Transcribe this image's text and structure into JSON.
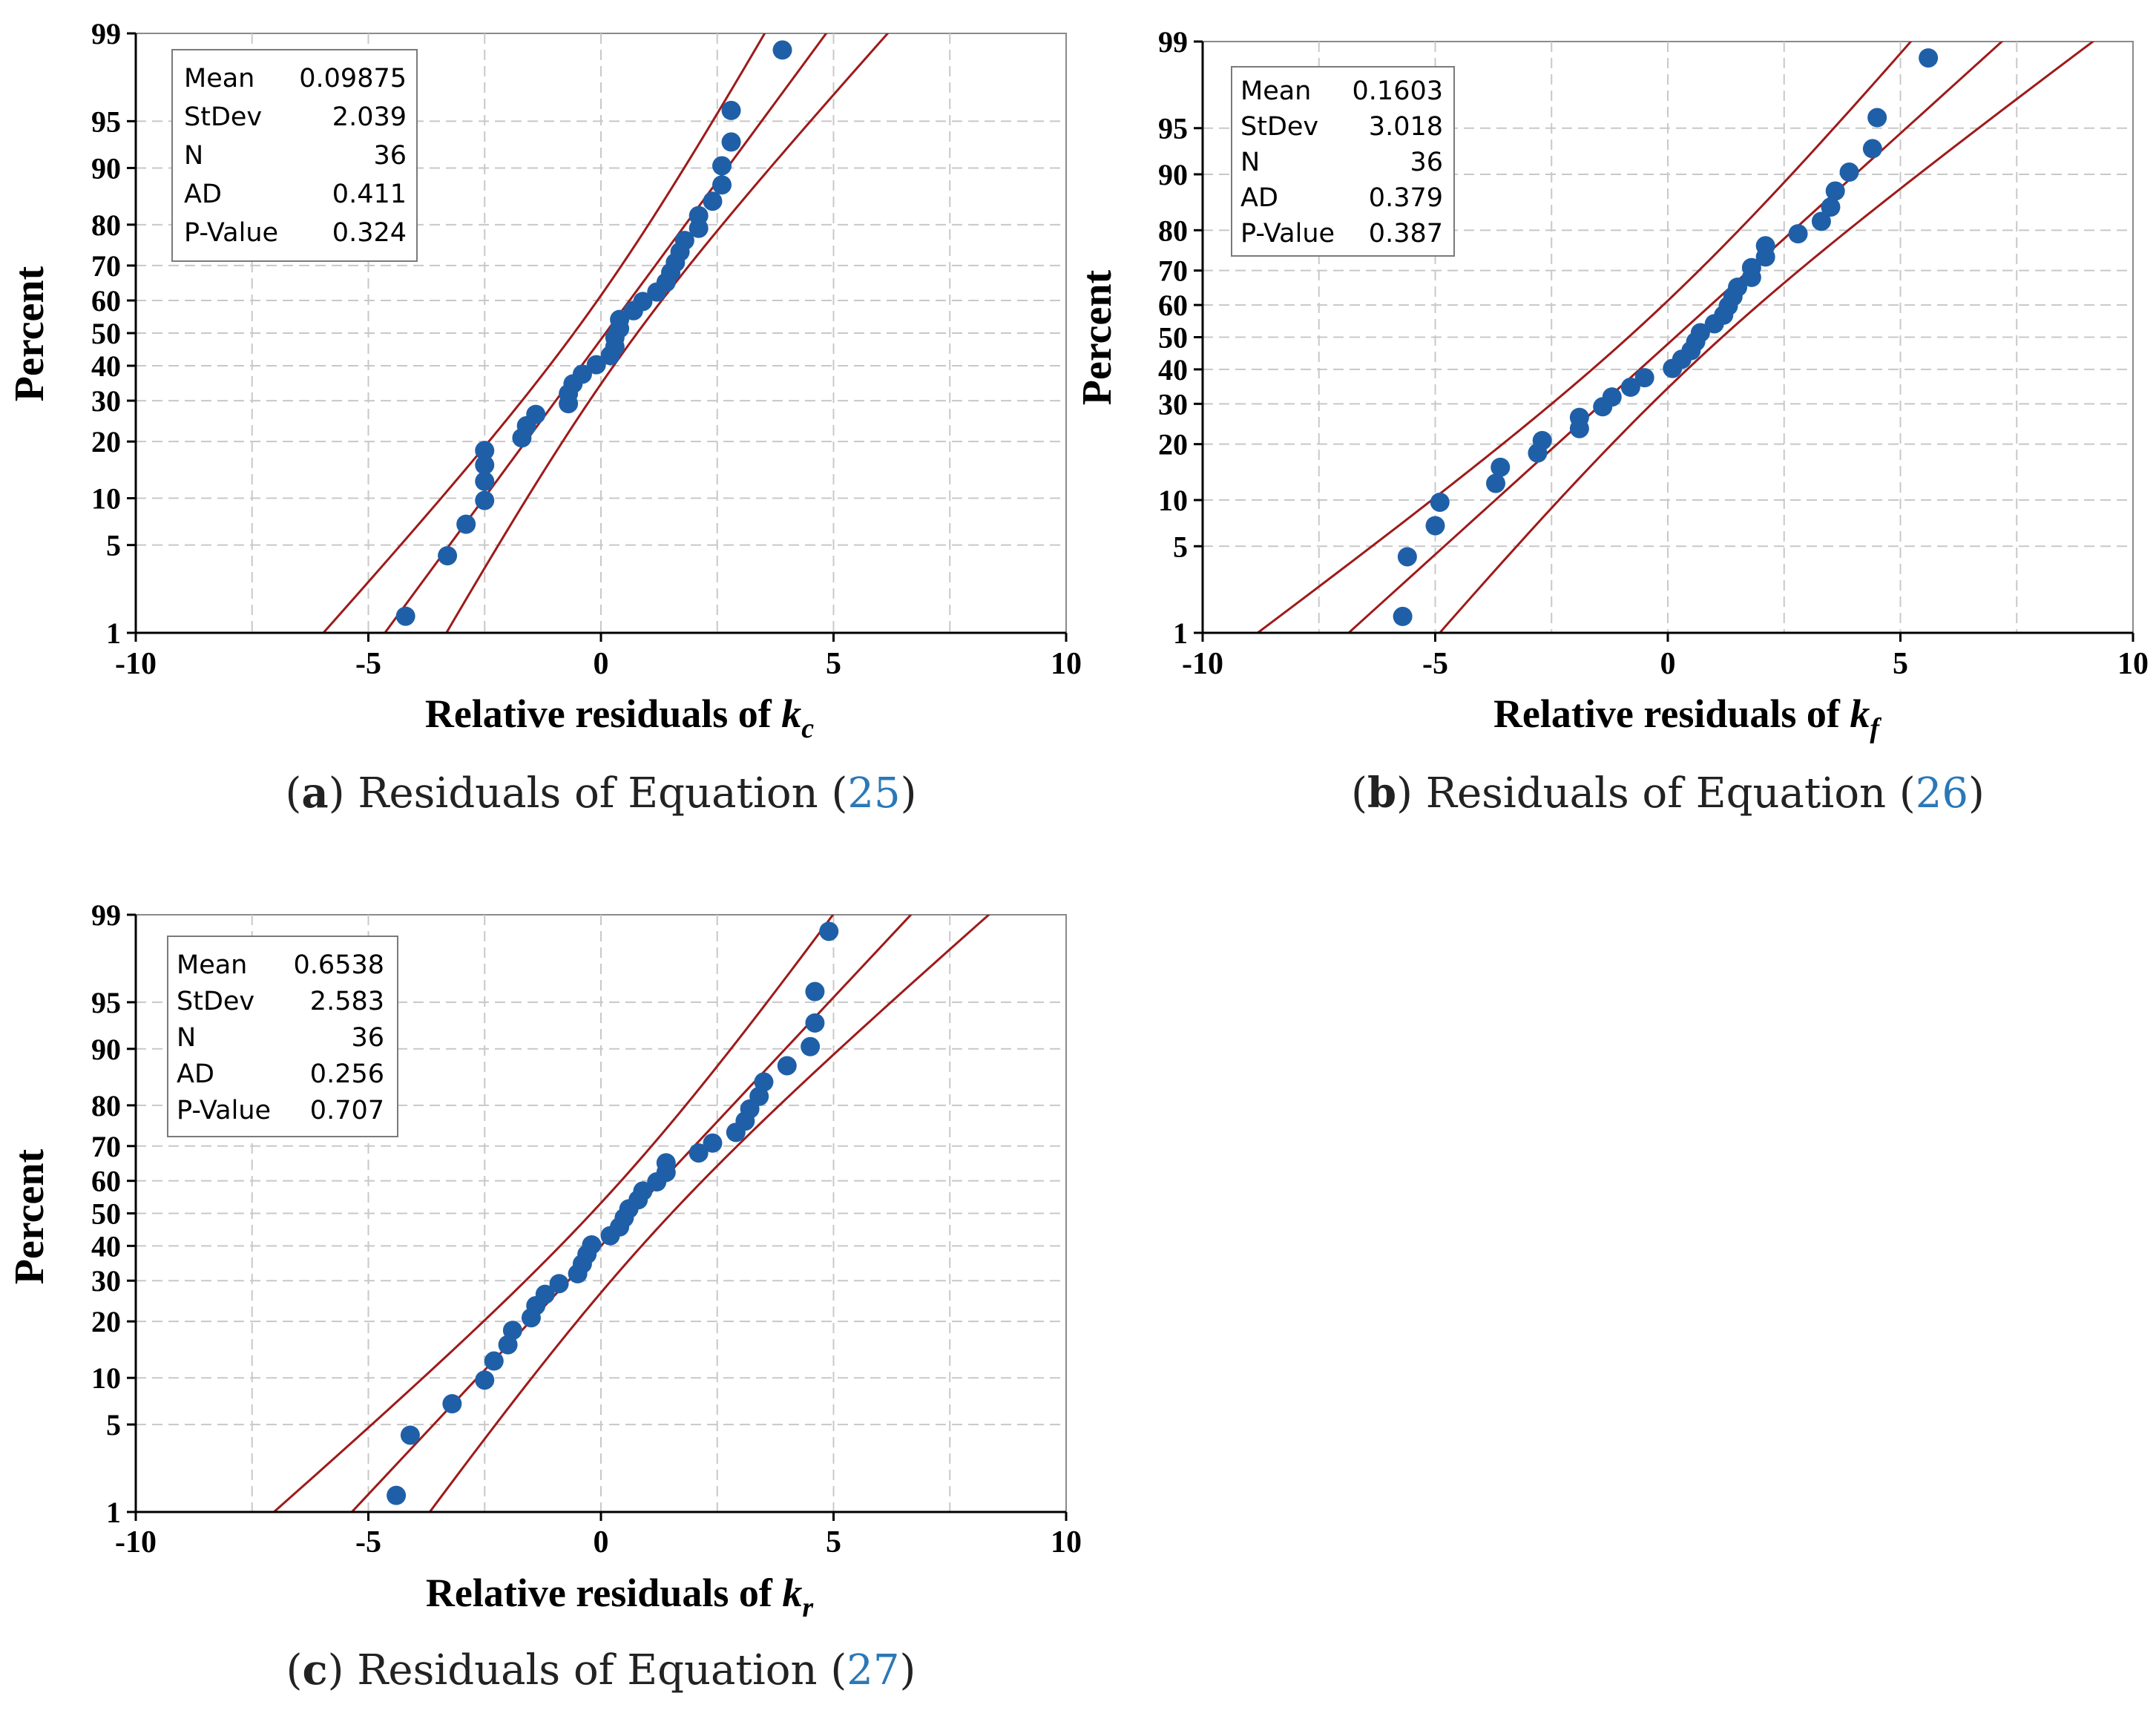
{
  "chart_data": [
    {
      "type": "scatter",
      "title": "",
      "ylabel": "Percent",
      "xlabel": "Relative residuals of ",
      "xlabel_symbol": "k",
      "xlabel_sub": "c",
      "caption": {
        "letter": "a",
        "text": "Residuals of Equation (",
        "ref": "25",
        "close": ")"
      },
      "xlim": [
        -10,
        10
      ],
      "xticks": [
        -10,
        -5,
        0,
        5,
        10
      ],
      "xtick_labels": [
        "-10",
        "-5",
        "0",
        "5",
        "10"
      ],
      "yticks": [
        1,
        5,
        10,
        20,
        30,
        40,
        50,
        60,
        70,
        80,
        90,
        95,
        99
      ],
      "ytick_labels": [
        "1",
        "5",
        "10",
        "20",
        "30",
        "40",
        "50",
        "60",
        "70",
        "80",
        "90",
        "95",
        "99"
      ],
      "grid": true,
      "stats": [
        {
          "label": "Mean",
          "value": "0.09875"
        },
        {
          "label": "StDev",
          "value": "2.039"
        },
        {
          "label": "N",
          "value": "36"
        },
        {
          "label": "AD",
          "value": "0.411"
        },
        {
          "label": "P-Value",
          "value": "0.324"
        }
      ],
      "fit": {
        "mean": 0.09875,
        "sd": 2.039,
        "n": 36
      },
      "colors": {
        "points": "#1f5fa8",
        "fit_line": "#9e1a1a",
        "grid": "#c8c8c8"
      },
      "points": [
        {
          "x": -4.2,
          "y": 1.4
        },
        {
          "x": -3.3,
          "y": 4.2
        },
        {
          "x": -2.9,
          "y": 6.9
        },
        {
          "x": -2.5,
          "y": 9.7
        },
        {
          "x": -2.5,
          "y": 12.5
        },
        {
          "x": -2.5,
          "y": 15.3
        },
        {
          "x": -2.5,
          "y": 18.1
        },
        {
          "x": -1.7,
          "y": 20.8
        },
        {
          "x": -1.6,
          "y": 23.6
        },
        {
          "x": -1.4,
          "y": 26.4
        },
        {
          "x": -0.7,
          "y": 29.2
        },
        {
          "x": -0.7,
          "y": 31.9
        },
        {
          "x": -0.6,
          "y": 34.7
        },
        {
          "x": -0.4,
          "y": 37.5
        },
        {
          "x": -0.1,
          "y": 40.3
        },
        {
          "x": 0.2,
          "y": 43.1
        },
        {
          "x": 0.3,
          "y": 45.8
        },
        {
          "x": 0.3,
          "y": 48.6
        },
        {
          "x": 0.4,
          "y": 51.4
        },
        {
          "x": 0.4,
          "y": 54.2
        },
        {
          "x": 0.7,
          "y": 56.9
        },
        {
          "x": 0.9,
          "y": 59.7
        },
        {
          "x": 1.2,
          "y": 62.5
        },
        {
          "x": 1.4,
          "y": 65.3
        },
        {
          "x": 1.5,
          "y": 68.1
        },
        {
          "x": 1.6,
          "y": 70.8
        },
        {
          "x": 1.7,
          "y": 73.6
        },
        {
          "x": 1.8,
          "y": 76.4
        },
        {
          "x": 2.1,
          "y": 79.2
        },
        {
          "x": 2.1,
          "y": 81.9
        },
        {
          "x": 2.4,
          "y": 84.7
        },
        {
          "x": 2.6,
          "y": 87.5
        },
        {
          "x": 2.6,
          "y": 90.3
        },
        {
          "x": 2.8,
          "y": 93.1
        },
        {
          "x": 2.8,
          "y": 95.8
        },
        {
          "x": 3.9,
          "y": 98.6
        }
      ]
    },
    {
      "type": "scatter",
      "title": "",
      "ylabel": "Percent",
      "xlabel": "Relative residuals of ",
      "xlabel_symbol": "k",
      "xlabel_sub": "f",
      "caption": {
        "letter": "b",
        "text": "Residuals of Equation (",
        "ref": "26",
        "close": ")"
      },
      "xlim": [
        -10,
        10
      ],
      "xticks": [
        -10,
        -5,
        0,
        5,
        10
      ],
      "xtick_labels": [
        "-10",
        "-5",
        "0",
        "5",
        "10"
      ],
      "yticks": [
        1,
        5,
        10,
        20,
        30,
        40,
        50,
        60,
        70,
        80,
        90,
        95,
        99
      ],
      "ytick_labels": [
        "1",
        "5",
        "10",
        "20",
        "30",
        "40",
        "50",
        "60",
        "70",
        "80",
        "90",
        "95",
        "99"
      ],
      "grid": true,
      "stats": [
        {
          "label": "Mean",
          "value": "0.1603"
        },
        {
          "label": "StDev",
          "value": "3.018"
        },
        {
          "label": "N",
          "value": "36"
        },
        {
          "label": "AD",
          "value": "0.379"
        },
        {
          "label": "P-Value",
          "value": "0.387"
        }
      ],
      "fit": {
        "mean": 0.1603,
        "sd": 3.018,
        "n": 36
      },
      "colors": {
        "points": "#1f5fa8",
        "fit_line": "#9e1a1a",
        "grid": "#c8c8c8"
      },
      "points": [
        {
          "x": -5.7,
          "y": 1.4
        },
        {
          "x": -5.6,
          "y": 4.2
        },
        {
          "x": -5.0,
          "y": 6.9
        },
        {
          "x": -4.9,
          "y": 9.7
        },
        {
          "x": -3.7,
          "y": 12.5
        },
        {
          "x": -3.6,
          "y": 15.3
        },
        {
          "x": -2.8,
          "y": 18.1
        },
        {
          "x": -2.7,
          "y": 20.8
        },
        {
          "x": -1.9,
          "y": 23.6
        },
        {
          "x": -1.9,
          "y": 26.4
        },
        {
          "x": -1.4,
          "y": 29.2
        },
        {
          "x": -1.2,
          "y": 31.9
        },
        {
          "x": -0.8,
          "y": 34.7
        },
        {
          "x": -0.5,
          "y": 37.5
        },
        {
          "x": 0.1,
          "y": 40.3
        },
        {
          "x": 0.3,
          "y": 43.1
        },
        {
          "x": 0.5,
          "y": 45.8
        },
        {
          "x": 0.6,
          "y": 48.6
        },
        {
          "x": 0.7,
          "y": 51.4
        },
        {
          "x": 1.0,
          "y": 54.2
        },
        {
          "x": 1.2,
          "y": 56.9
        },
        {
          "x": 1.3,
          "y": 59.7
        },
        {
          "x": 1.4,
          "y": 62.5
        },
        {
          "x": 1.5,
          "y": 65.3
        },
        {
          "x": 1.8,
          "y": 68.1
        },
        {
          "x": 1.8,
          "y": 70.8
        },
        {
          "x": 2.1,
          "y": 73.6
        },
        {
          "x": 2.1,
          "y": 76.4
        },
        {
          "x": 2.8,
          "y": 79.2
        },
        {
          "x": 3.3,
          "y": 81.9
        },
        {
          "x": 3.5,
          "y": 84.7
        },
        {
          "x": 3.6,
          "y": 87.5
        },
        {
          "x": 3.9,
          "y": 90.3
        },
        {
          "x": 4.4,
          "y": 93.1
        },
        {
          "x": 4.5,
          "y": 95.8
        },
        {
          "x": 5.6,
          "y": 98.6
        }
      ]
    },
    {
      "type": "scatter",
      "title": "",
      "ylabel": "Percent",
      "xlabel": "Relative residuals of ",
      "xlabel_symbol": "k",
      "xlabel_sub": "r",
      "caption": {
        "letter": "c",
        "text": "Residuals of Equation (",
        "ref": "27",
        "close": ")"
      },
      "xlim": [
        -10,
        10
      ],
      "xticks": [
        -10,
        -5,
        0,
        5,
        10
      ],
      "xtick_labels": [
        "-10",
        "-5",
        "0",
        "5",
        "10"
      ],
      "yticks": [
        1,
        5,
        10,
        20,
        30,
        40,
        50,
        60,
        70,
        80,
        90,
        95,
        99
      ],
      "ytick_labels": [
        "1",
        "5",
        "10",
        "20",
        "30",
        "40",
        "50",
        "60",
        "70",
        "80",
        "90",
        "95",
        "99"
      ],
      "grid": true,
      "stats": [
        {
          "label": "Mean",
          "value": "0.6538"
        },
        {
          "label": "StDev",
          "value": "2.583"
        },
        {
          "label": "N",
          "value": "36"
        },
        {
          "label": "AD",
          "value": "0.256"
        },
        {
          "label": "P-Value",
          "value": "0.707"
        }
      ],
      "fit": {
        "mean": 0.6538,
        "sd": 2.583,
        "n": 36
      },
      "colors": {
        "points": "#1f5fa8",
        "fit_line": "#9e1a1a",
        "grid": "#c8c8c8"
      },
      "points": [
        {
          "x": -4.4,
          "y": 1.4
        },
        {
          "x": -4.1,
          "y": 4.2
        },
        {
          "x": -3.2,
          "y": 6.9
        },
        {
          "x": -2.5,
          "y": 9.7
        },
        {
          "x": -2.3,
          "y": 12.5
        },
        {
          "x": -2.0,
          "y": 15.3
        },
        {
          "x": -1.9,
          "y": 18.1
        },
        {
          "x": -1.5,
          "y": 20.8
        },
        {
          "x": -1.4,
          "y": 23.6
        },
        {
          "x": -1.2,
          "y": 26.4
        },
        {
          "x": -0.9,
          "y": 29.2
        },
        {
          "x": -0.5,
          "y": 31.9
        },
        {
          "x": -0.4,
          "y": 34.7
        },
        {
          "x": -0.3,
          "y": 37.5
        },
        {
          "x": -0.2,
          "y": 40.3
        },
        {
          "x": 0.2,
          "y": 43.1
        },
        {
          "x": 0.4,
          "y": 45.8
        },
        {
          "x": 0.5,
          "y": 48.6
        },
        {
          "x": 0.6,
          "y": 51.4
        },
        {
          "x": 0.8,
          "y": 54.2
        },
        {
          "x": 0.9,
          "y": 56.9
        },
        {
          "x": 1.2,
          "y": 59.7
        },
        {
          "x": 1.4,
          "y": 62.5
        },
        {
          "x": 1.4,
          "y": 65.3
        },
        {
          "x": 2.1,
          "y": 68.1
        },
        {
          "x": 2.4,
          "y": 70.8
        },
        {
          "x": 2.9,
          "y": 73.6
        },
        {
          "x": 3.1,
          "y": 76.4
        },
        {
          "x": 3.2,
          "y": 79.2
        },
        {
          "x": 3.4,
          "y": 81.9
        },
        {
          "x": 3.5,
          "y": 84.7
        },
        {
          "x": 4.0,
          "y": 87.5
        },
        {
          "x": 4.5,
          "y": 90.3
        },
        {
          "x": 4.6,
          "y": 93.1
        },
        {
          "x": 4.6,
          "y": 95.8
        },
        {
          "x": 4.9,
          "y": 98.6
        }
      ]
    }
  ]
}
